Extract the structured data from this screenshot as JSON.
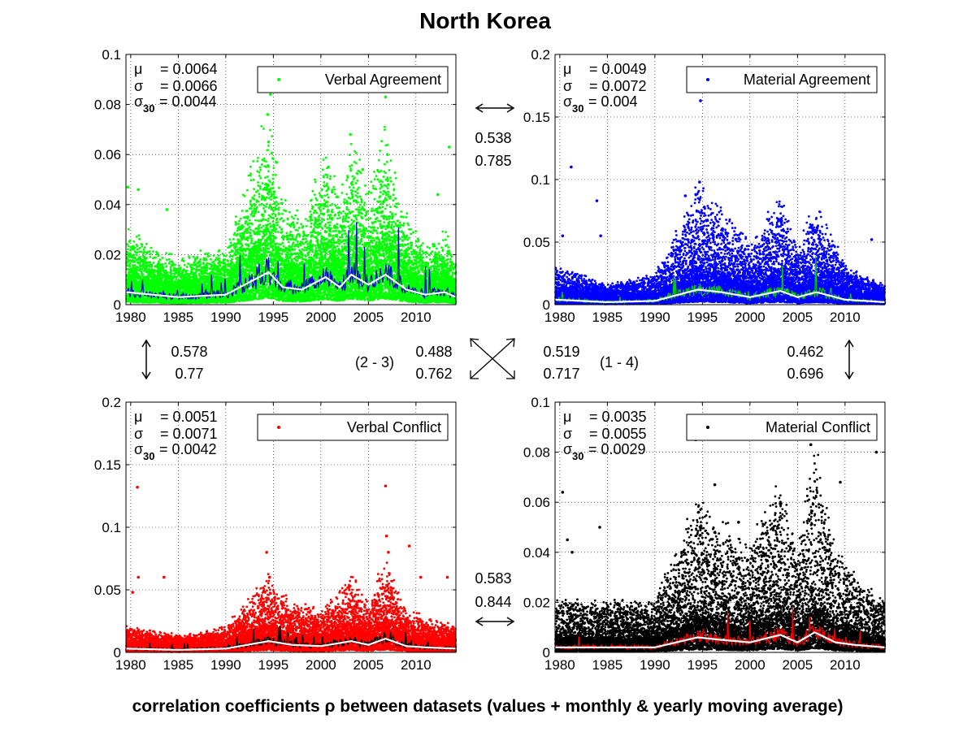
{
  "title": "North Korea",
  "caption": "correlation coefficients ρ between datasets (values + monthly & yearly moving average)",
  "chart_data": [
    {
      "type": "scatter",
      "panel": "top-left",
      "legend": "Verbal Agreement",
      "legend_position": "top-right",
      "marker_color": "#00ff00",
      "monthly_color": "#0000cc",
      "yearly_color": "#ffffff",
      "grid": true,
      "xlim": [
        1979.5,
        2014.2
      ],
      "ylim": [
        0,
        0.1
      ],
      "xticks": [
        "1980",
        "1985",
        "1990",
        "1995",
        "2000",
        "2005",
        "2010"
      ],
      "yticks": [
        "0",
        "0.02",
        "0.04",
        "0.06",
        "0.08",
        "0.1"
      ],
      "stats": {
        "mu": "= 0.0064",
        "sigma": "= 0.0066",
        "sigma30": "= 0.0044"
      },
      "baseline": 0.0064,
      "max_typical": 0.025,
      "yearly_profile": [
        [
          1979.5,
          0.005
        ],
        [
          1985,
          0.003
        ],
        [
          1990,
          0.004
        ],
        [
          1994.5,
          0.013
        ],
        [
          1996,
          0.007
        ],
        [
          1998,
          0.006
        ],
        [
          2000.5,
          0.011
        ],
        [
          2002,
          0.007
        ],
        [
          2003.2,
          0.012
        ],
        [
          2005,
          0.008
        ],
        [
          2006.8,
          0.012
        ],
        [
          2009,
          0.006
        ],
        [
          2011,
          0.004
        ],
        [
          2013,
          0.005
        ],
        [
          2014.2,
          0.003
        ]
      ],
      "outliers": [
        [
          1979.7,
          0.047
        ],
        [
          1980.8,
          0.046
        ],
        [
          1983.8,
          0.038
        ],
        [
          1994.4,
          0.076
        ],
        [
          1994.5,
          0.065
        ],
        [
          1994.7,
          0.084
        ],
        [
          1995.3,
          0.057
        ],
        [
          2000.8,
          0.055
        ],
        [
          2001.2,
          0.045
        ],
        [
          2003.1,
          0.068
        ],
        [
          2004.4,
          0.054
        ],
        [
          2006.8,
          0.083
        ],
        [
          2007.0,
          0.06
        ],
        [
          2007.1,
          0.048
        ],
        [
          2012.3,
          0.044
        ],
        [
          2013.5,
          0.063
        ]
      ]
    },
    {
      "type": "scatter",
      "panel": "top-right",
      "legend": "Material Agreement",
      "legend_position": "top-right",
      "marker_color": "#0000ff",
      "monthly_color": "#00cc00",
      "yearly_color": "#ffffff",
      "grid": true,
      "xlim": [
        1979.5,
        2014.2
      ],
      "ylim": [
        0,
        0.2
      ],
      "xticks": [
        "1980",
        "1985",
        "1990",
        "1995",
        "2000",
        "2005",
        "2010"
      ],
      "yticks": [
        "0",
        "0.05",
        "0.1",
        "0.15",
        "0.2"
      ],
      "stats": {
        "mu": "= 0.0049",
        "sigma": "= 0.0072",
        "sigma30": "= 0.004"
      },
      "baseline": 0.0049,
      "max_typical": 0.03,
      "yearly_profile": [
        [
          1979.5,
          0.004
        ],
        [
          1985,
          0.002
        ],
        [
          1990,
          0.003
        ],
        [
          1994.5,
          0.012
        ],
        [
          1997,
          0.01
        ],
        [
          2000,
          0.006
        ],
        [
          2003.2,
          0.011
        ],
        [
          2005,
          0.006
        ],
        [
          2007,
          0.01
        ],
        [
          2010,
          0.004
        ],
        [
          2014.2,
          0.002
        ]
      ],
      "outliers": [
        [
          1980.3,
          0.055
        ],
        [
          1981.2,
          0.11
        ],
        [
          1983.9,
          0.083
        ],
        [
          1984.3,
          0.055
        ],
        [
          1993.2,
          0.087
        ],
        [
          1994.3,
          0.088
        ],
        [
          1994.7,
          0.098
        ],
        [
          1994.8,
          0.163
        ],
        [
          1995.2,
          0.078
        ],
        [
          2003.3,
          0.055
        ],
        [
          2006.8,
          0.058
        ],
        [
          2012.8,
          0.052
        ]
      ]
    },
    {
      "type": "scatter",
      "panel": "bottom-left",
      "legend": "Verbal Conflict",
      "legend_position": "top-right",
      "marker_color": "#ff0000",
      "monthly_color": "#000000",
      "yearly_color": "#ffffff",
      "grid": true,
      "xlim": [
        1979.5,
        2014.2
      ],
      "ylim": [
        0,
        0.2
      ],
      "xticks": [
        "1980",
        "1985",
        "1990",
        "1995",
        "2000",
        "2005",
        "2010"
      ],
      "yticks": [
        "0",
        "0.05",
        "0.1",
        "0.15",
        "0.2"
      ],
      "stats": {
        "mu": "= 0.0051",
        "sigma": "= 0.0071",
        "sigma30": "= 0.0042"
      },
      "baseline": 0.0051,
      "max_typical": 0.025,
      "yearly_profile": [
        [
          1979.5,
          0.003
        ],
        [
          1985,
          0.002
        ],
        [
          1990,
          0.003
        ],
        [
          1994.5,
          0.009
        ],
        [
          1997,
          0.006
        ],
        [
          2000,
          0.005
        ],
        [
          2003.2,
          0.009
        ],
        [
          2005,
          0.006
        ],
        [
          2006.8,
          0.011
        ],
        [
          2009,
          0.005
        ],
        [
          2011,
          0.004
        ],
        [
          2014.2,
          0.003
        ]
      ],
      "outliers": [
        [
          1980.2,
          0.048
        ],
        [
          1980.7,
          0.132
        ],
        [
          1980.8,
          0.06
        ],
        [
          1983.5,
          0.06
        ],
        [
          1994.3,
          0.08
        ],
        [
          1994.6,
          0.06
        ],
        [
          2006.8,
          0.133
        ],
        [
          2006.9,
          0.093
        ],
        [
          2007.1,
          0.08
        ],
        [
          2009.3,
          0.085
        ],
        [
          2010.5,
          0.06
        ],
        [
          2013.3,
          0.06
        ]
      ]
    },
    {
      "type": "scatter",
      "panel": "bottom-right",
      "legend": "Material Conflict",
      "legend_position": "top-right",
      "marker_color": "#000000",
      "monthly_color": "#ff0000",
      "yearly_color": "#ffffff",
      "grid": true,
      "xlim": [
        1979.5,
        2014.2
      ],
      "ylim": [
        0,
        0.1
      ],
      "xticks": [
        "1980",
        "1985",
        "1990",
        "1995",
        "2000",
        "2005",
        "2010"
      ],
      "yticks": [
        "0",
        "0.02",
        "0.04",
        "0.06",
        "0.08",
        "0.1"
      ],
      "stats": {
        "mu": "= 0.0035",
        "sigma": "= 0.0055",
        "sigma30": "= 0.0029"
      },
      "baseline": 0.0035,
      "max_typical": 0.03,
      "yearly_profile": [
        [
          1979.5,
          0.002
        ],
        [
          1985,
          0.002
        ],
        [
          1990,
          0.002
        ],
        [
          1994.5,
          0.006
        ],
        [
          1997,
          0.005
        ],
        [
          2000,
          0.004
        ],
        [
          2003.2,
          0.007
        ],
        [
          2005,
          0.004
        ],
        [
          2006.8,
          0.008
        ],
        [
          2009,
          0.004
        ],
        [
          2011,
          0.003
        ],
        [
          2014.2,
          0.002
        ]
      ],
      "outliers": [
        [
          1980.3,
          0.064
        ],
        [
          1980.8,
          0.045
        ],
        [
          1981.3,
          0.04
        ],
        [
          1984.2,
          0.05
        ],
        [
          1994.3,
          0.085
        ],
        [
          1994.6,
          0.056
        ],
        [
          1996.3,
          0.067
        ],
        [
          1998.8,
          0.052
        ],
        [
          2003.2,
          0.06
        ],
        [
          2006.4,
          0.083
        ],
        [
          2009.5,
          0.068
        ],
        [
          2013.3,
          0.08
        ]
      ]
    }
  ],
  "correlations": {
    "top": {
      "values": [
        "0.538",
        "0.785"
      ],
      "pair": ""
    },
    "left": {
      "values": [
        "0.578",
        "0.77"
      ],
      "pair": ""
    },
    "right": {
      "values": [
        "0.462",
        "0.696"
      ],
      "pair": ""
    },
    "bottom": {
      "values": [
        "0.583",
        "0.844"
      ],
      "pair": ""
    },
    "diag_23": {
      "values": [
        "0.488",
        "0.762"
      ],
      "pair": "(2 - 3)"
    },
    "diag_14": {
      "values": [
        "0.519",
        "0.717"
      ],
      "pair": "(1 - 4)"
    }
  },
  "stat_labels": {
    "mu": "μ",
    "sigma": "σ",
    "sigma30": "σ",
    "sigma30_sub": "30"
  }
}
